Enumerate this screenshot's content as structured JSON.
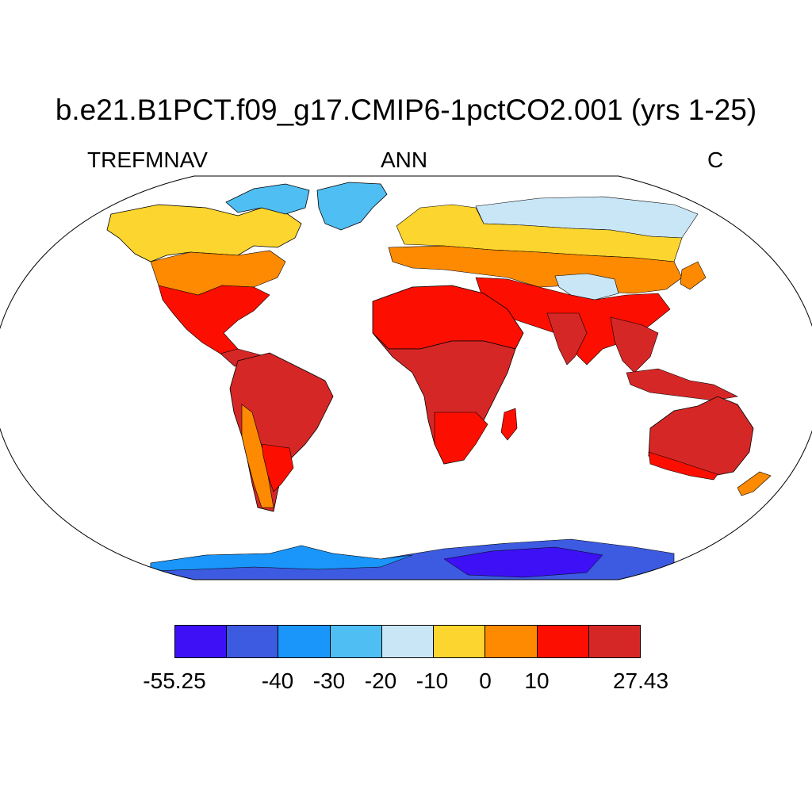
{
  "title": "b.e21.B1PCT.f09_g17.CMIP6-1pctCO2.001 (yrs 1-25)",
  "variable": "TREFMNAV",
  "season": "ANN",
  "units": "C",
  "colorbar": {
    "colors": [
      "#3d10f5",
      "#3c5be0",
      "#1a96fa",
      "#4fbef2",
      "#c9e6f7",
      "#fcd52e",
      "#fd8a00",
      "#fc0f00",
      "#d62727"
    ],
    "labels": [
      "-55.25",
      "-40",
      "-30",
      "-20",
      "-10",
      "0",
      "10",
      "27.43"
    ]
  },
  "regions": [
    {
      "name": "alaska-canada",
      "color": "#fcd52e"
    },
    {
      "name": "greenland",
      "color": "#4fbef2"
    },
    {
      "name": "canadian-arctic",
      "color": "#4fbef2"
    },
    {
      "name": "north-russia",
      "color": "#c9e6f7"
    },
    {
      "name": "eurasia-midlatitude",
      "color": "#fd8a00"
    },
    {
      "name": "tibet",
      "color": "#c9e6f7"
    },
    {
      "name": "africa",
      "color": "#d62727"
    },
    {
      "name": "south-america",
      "color": "#d62727"
    },
    {
      "name": "australia",
      "color": "#d62727"
    },
    {
      "name": "antarctica",
      "color": "#3c5be0"
    }
  ]
}
